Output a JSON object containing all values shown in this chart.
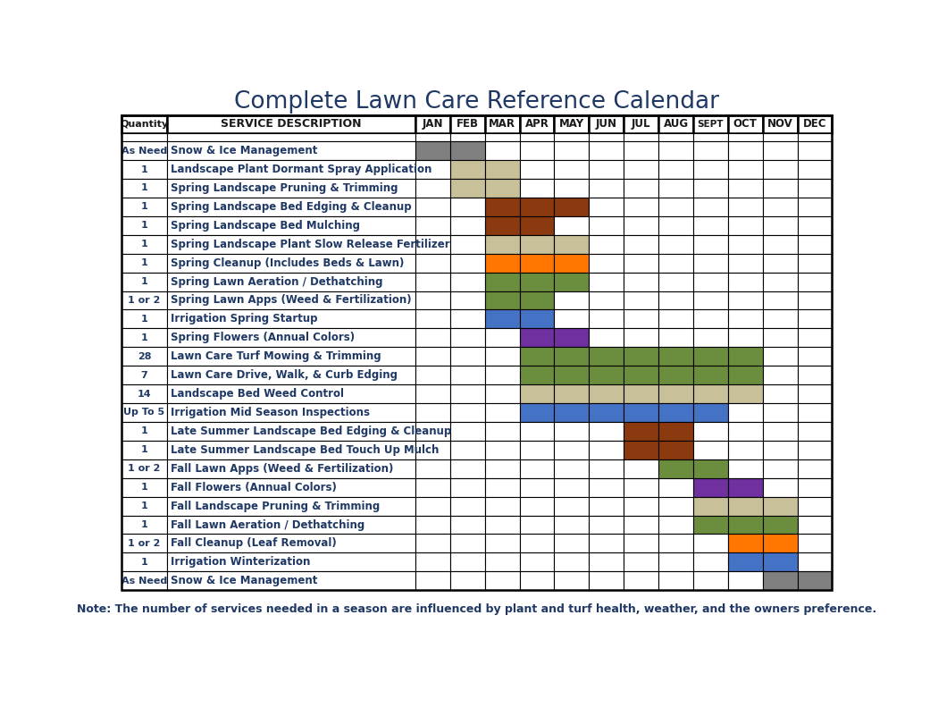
{
  "title": "Complete Lawn Care Reference Calendar",
  "note": "Note: The number of services needed in a season are influenced by plant and turf health, weather, and the owners preference.",
  "months": [
    "JAN",
    "FEB",
    "MAR",
    "APR",
    "MAY",
    "JUN",
    "JUL",
    "AUG",
    "SEPT",
    "OCT",
    "NOV",
    "DEC"
  ],
  "header_qty": "Quantity",
  "header_svc": "SERVICE DESCRIPTION",
  "rows": [
    {
      "qty": "",
      "service": "",
      "months": {},
      "is_spacer": true
    },
    {
      "qty": "As Need",
      "service": "Snow & Ice Management",
      "months": {
        "JAN": "#808080",
        "FEB": "#808080"
      },
      "is_spacer": false
    },
    {
      "qty": "1",
      "service": "Landscape Plant Dormant Spray Application",
      "months": {
        "FEB": "#c8c098",
        "MAR": "#c8c098"
      },
      "is_spacer": false
    },
    {
      "qty": "1",
      "service": "Spring Landscape Pruning & Trimming",
      "months": {
        "FEB": "#c8c098",
        "MAR": "#c8c098"
      },
      "is_spacer": false
    },
    {
      "qty": "1",
      "service": "Spring Landscape Bed Edging & Cleanup",
      "months": {
        "MAR": "#8b3a0f",
        "APR": "#8b3a0f",
        "MAY": "#8b3a0f"
      },
      "is_spacer": false
    },
    {
      "qty": "1",
      "service": "Spring Landscape Bed Mulching",
      "months": {
        "MAR": "#8b3a0f",
        "APR": "#8b3a0f"
      },
      "is_spacer": false
    },
    {
      "qty": "1",
      "service": "Spring Landscape Plant Slow Release Fertilizer",
      "months": {
        "MAR": "#c8c098",
        "APR": "#c8c098",
        "MAY": "#c8c098"
      },
      "is_spacer": false
    },
    {
      "qty": "1",
      "service": "Spring Cleanup (Includes Beds & Lawn)",
      "months": {
        "MAR": "#ff7700",
        "APR": "#ff7700",
        "MAY": "#ff7700"
      },
      "is_spacer": false
    },
    {
      "qty": "1",
      "service": "Spring Lawn Aeration / Dethatching",
      "months": {
        "MAR": "#6b8e3e",
        "APR": "#6b8e3e",
        "MAY": "#6b8e3e"
      },
      "is_spacer": false
    },
    {
      "qty": "1 or 2",
      "service": "Spring Lawn Apps (Weed & Fertilization)",
      "months": {
        "MAR": "#6b8e3e",
        "APR": "#6b8e3e"
      },
      "is_spacer": false
    },
    {
      "qty": "1",
      "service": "Irrigation Spring Startup",
      "months": {
        "MAR": "#4472c4",
        "APR": "#4472c4"
      },
      "is_spacer": false
    },
    {
      "qty": "1",
      "service": "Spring Flowers (Annual Colors)",
      "months": {
        "APR": "#7030a0",
        "MAY": "#7030a0"
      },
      "is_spacer": false
    },
    {
      "qty": "28",
      "service": "Lawn Care Turf Mowing & Trimming",
      "months": {
        "APR": "#6b8e3e",
        "MAY": "#6b8e3e",
        "JUN": "#6b8e3e",
        "JUL": "#6b8e3e",
        "AUG": "#6b8e3e",
        "SEPT": "#6b8e3e",
        "OCT": "#6b8e3e"
      },
      "is_spacer": false
    },
    {
      "qty": "7",
      "service": "Lawn Care Drive, Walk, & Curb Edging",
      "months": {
        "APR": "#6b8e3e",
        "MAY": "#6b8e3e",
        "JUN": "#6b8e3e",
        "JUL": "#6b8e3e",
        "AUG": "#6b8e3e",
        "SEPT": "#6b8e3e",
        "OCT": "#6b8e3e"
      },
      "is_spacer": false
    },
    {
      "qty": "14",
      "service": "Landscape Bed Weed Control",
      "months": {
        "APR": "#c8c098",
        "MAY": "#c8c098",
        "JUN": "#c8c098",
        "JUL": "#c8c098",
        "AUG": "#c8c098",
        "SEPT": "#c8c098",
        "OCT": "#c8c098"
      },
      "is_spacer": false
    },
    {
      "qty": "Up To 5",
      "service": "Irrigation Mid Season Inspections",
      "months": {
        "APR": "#4472c4",
        "MAY": "#4472c4",
        "JUN": "#4472c4",
        "JUL": "#4472c4",
        "AUG": "#4472c4",
        "SEPT": "#4472c4"
      },
      "is_spacer": false
    },
    {
      "qty": "1",
      "service": "Late Summer Landscape Bed Edging & Cleanup",
      "months": {
        "JUL": "#8b3a0f",
        "AUG": "#8b3a0f"
      },
      "is_spacer": false
    },
    {
      "qty": "1",
      "service": "Late Summer Landscape Bed Touch Up Mulch",
      "months": {
        "JUL": "#8b3a0f",
        "AUG": "#8b3a0f"
      },
      "is_spacer": false
    },
    {
      "qty": "1 or 2",
      "service": "Fall Lawn Apps (Weed & Fertilization)",
      "months": {
        "AUG": "#6b8e3e",
        "SEPT": "#6b8e3e"
      },
      "is_spacer": false
    },
    {
      "qty": "1",
      "service": "Fall Flowers (Annual Colors)",
      "months": {
        "SEPT": "#7030a0",
        "OCT": "#7030a0"
      },
      "is_spacer": false
    },
    {
      "qty": "1",
      "service": "Fall Landscape Pruning & Trimming",
      "months": {
        "SEPT": "#c8c098",
        "OCT": "#c8c098",
        "NOV": "#c8c098"
      },
      "is_spacer": false
    },
    {
      "qty": "1",
      "service": "Fall Lawn Aeration / Dethatching",
      "months": {
        "SEPT": "#6b8e3e",
        "OCT": "#6b8e3e",
        "NOV": "#6b8e3e"
      },
      "is_spacer": false
    },
    {
      "qty": "1 or 2",
      "service": "Fall Cleanup (Leaf Removal)",
      "months": {
        "OCT": "#ff7700",
        "NOV": "#ff7700"
      },
      "is_spacer": false
    },
    {
      "qty": "1",
      "service": "Irrigation Winterization",
      "months": {
        "OCT": "#4472c4",
        "NOV": "#4472c4"
      },
      "is_spacer": false
    },
    {
      "qty": "As Need",
      "service": "Snow & Ice Management",
      "months": {
        "NOV": "#808080",
        "DEC": "#808080"
      },
      "is_spacer": false
    }
  ],
  "title_color": "#1f3864",
  "header_text_color": "#1a1a1a",
  "qty_text_color": "#1f3864",
  "svc_text_color": "#1f3864",
  "note_color": "#1f3864",
  "figw": 10.41,
  "figh": 7.92
}
